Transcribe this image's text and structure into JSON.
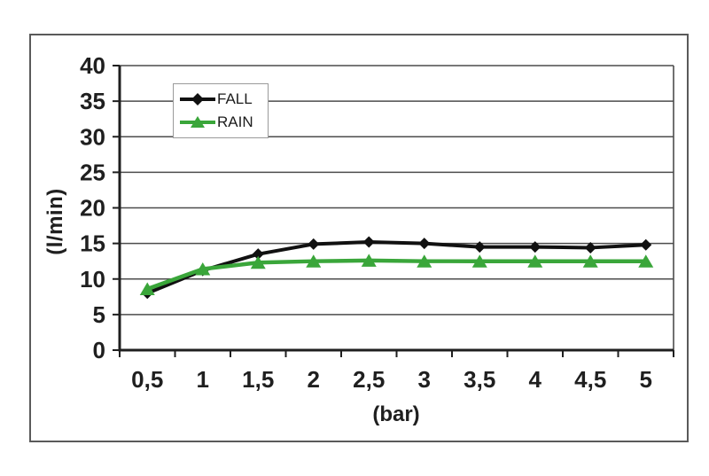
{
  "figure": {
    "xlabel": "(bar)",
    "ylabel": "(l/min)"
  },
  "colors": {
    "background": "#ffffff",
    "frame_border": "#5a5a5a",
    "grid": "#4c4c4c",
    "axis": "#1f1f1f",
    "text": "#1f1f1f",
    "legend_border": "#9a9a9a",
    "fall": "#111111",
    "rain": "#3aa63a"
  },
  "legend": {
    "items": [
      {
        "label": "FALL",
        "marker": "diamond",
        "color": "#111111"
      },
      {
        "label": "RAIN",
        "marker": "triangle",
        "color": "#3aa63a"
      }
    ]
  },
  "chart_data": {
    "type": "line",
    "title": "",
    "xlabel": "(bar)",
    "ylabel": "(l/min)",
    "x": [
      0.5,
      1,
      1.5,
      2,
      2.5,
      3,
      3.5,
      4,
      4.5,
      5
    ],
    "xtick_labels": [
      "0,5",
      "1",
      "1,5",
      "2",
      "2,5",
      "3",
      "3,5",
      "4",
      "4,5",
      "5"
    ],
    "yticks": [
      0,
      5,
      10,
      15,
      20,
      25,
      30,
      35,
      40
    ],
    "ytick_labels": [
      "0",
      "5",
      "10",
      "15",
      "20",
      "25",
      "30",
      "35",
      "40"
    ],
    "ylim": [
      0,
      40
    ],
    "grid": "horizontal",
    "legend_position": "top-left-inside",
    "series": [
      {
        "name": "FALL",
        "color": "#111111",
        "marker": "diamond",
        "values": [
          8.0,
          11.2,
          13.5,
          14.9,
          15.2,
          15.0,
          14.5,
          14.5,
          14.4,
          14.8
        ]
      },
      {
        "name": "RAIN",
        "color": "#3aa63a",
        "marker": "triangle",
        "values": [
          8.6,
          11.4,
          12.3,
          12.5,
          12.6,
          12.5,
          12.5,
          12.5,
          12.5,
          12.5
        ]
      }
    ]
  }
}
